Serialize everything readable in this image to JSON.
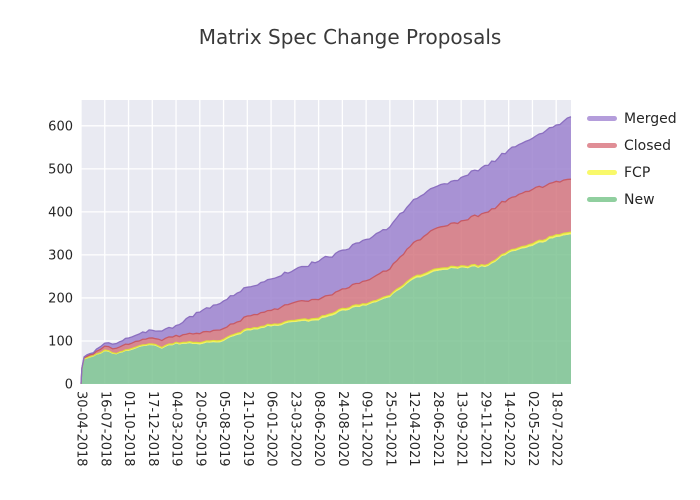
{
  "chart_data": {
    "type": "area",
    "stacked": true,
    "title": "Matrix Spec Change Proposals",
    "xlabel": "",
    "ylabel": "",
    "grid": true,
    "legend_position": "right-outside",
    "ylim": [
      0,
      660
    ],
    "y_ticks": [
      0,
      100,
      200,
      300,
      400,
      500,
      600
    ],
    "xlim_days": [
      0,
      1588
    ],
    "x_tick_labels": [
      "30-04-2018",
      "16-07-2018",
      "01-10-2018",
      "17-12-2018",
      "04-03-2019",
      "20-05-2019",
      "05-08-2019",
      "21-10-2019",
      "06-01-2020",
      "23-03-2020",
      "08-06-2020",
      "24-08-2020",
      "09-11-2020",
      "25-01-2021",
      "12-04-2021",
      "28-06-2021",
      "13-09-2021",
      "29-11-2021",
      "14-02-2022",
      "02-05-2022",
      "18-07-2022"
    ],
    "x_tick_days": [
      0,
      77,
      154,
      231,
      308,
      385,
      462,
      539,
      616,
      693,
      770,
      847,
      924,
      1001,
      1078,
      1155,
      1232,
      1309,
      1386,
      1463,
      1540
    ],
    "x_days": [
      0,
      3,
      10,
      30,
      50,
      77,
      115,
      154,
      200,
      231,
      262,
      308,
      385,
      462,
      539,
      616,
      693,
      770,
      847,
      924,
      1001,
      1078,
      1155,
      1232,
      1309,
      1386,
      1463,
      1540,
      1588
    ],
    "stack_order_bottom_to_top": [
      "New",
      "FCP",
      "Closed",
      "Merged"
    ],
    "series": [
      {
        "name": "New",
        "fill": "#7cc392",
        "line": "#6aba80",
        "values": [
          0,
          35,
          57,
          62,
          68,
          76,
          69,
          77,
          88,
          90,
          82,
          94,
          92,
          100,
          125,
          134,
          144,
          148,
          171,
          182,
          202,
          244,
          263,
          271,
          272,
          305,
          321,
          342,
          348
        ]
      },
      {
        "name": "FCP",
        "fill": "#f2f258",
        "line": "#dfdf39",
        "values": [
          0,
          1,
          2,
          2,
          2,
          3,
          2,
          3,
          3,
          3,
          3,
          3,
          4,
          4,
          4,
          4,
          4,
          5,
          5,
          4,
          4,
          5,
          5,
          4,
          4,
          4,
          5,
          5,
          5
        ]
      },
      {
        "name": "Closed",
        "fill": "#d4757f",
        "line": "#c75a65",
        "values": [
          0,
          1,
          2,
          4,
          6,
          9,
          12,
          12,
          13,
          14,
          16,
          16,
          21,
          25,
          29,
          33,
          42,
          43,
          45,
          54,
          61,
          80,
          95,
          104,
          122,
          121,
          126,
          124,
          123
        ]
      },
      {
        "name": "Merged",
        "fill": "#9c82cf",
        "line": "#8b6fc0",
        "values": [
          0,
          1,
          2,
          3,
          5,
          7,
          11,
          15,
          17,
          18,
          22,
          23,
          50,
          64,
          67,
          73,
          76,
          89,
          90,
          96,
          98,
          100,
          97,
          101,
          110,
          114,
          119,
          131,
          145
        ]
      }
    ],
    "legend": [
      {
        "label": "Merged",
        "color": "#b49ddb"
      },
      {
        "label": "Closed",
        "color": "#e08e96"
      },
      {
        "label": "FCP",
        "color": "#f9f96a"
      },
      {
        "label": "New",
        "color": "#90cf9f"
      }
    ],
    "colors": {
      "plot_background": "#e9eaf2",
      "grid": "#ffffff",
      "tick_text": "#262626",
      "title_text": "#3a3a3a"
    }
  }
}
